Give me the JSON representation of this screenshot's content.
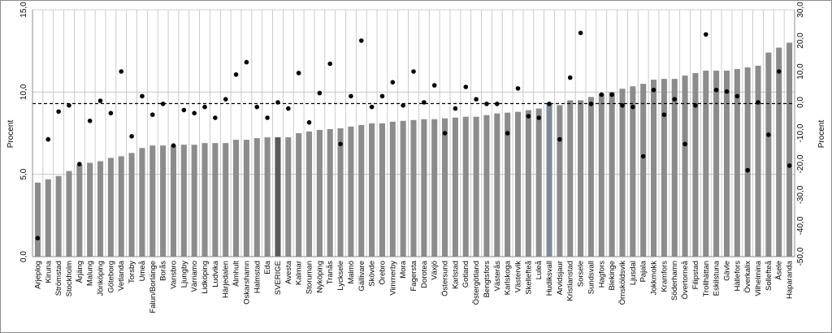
{
  "chart_data": {
    "type": "bar",
    "ylabel_left": "Procent",
    "ylabel_right": "Procent",
    "ylim_left": [
      0,
      15
    ],
    "ylim_right": [
      -50,
      30
    ],
    "left_ticks": [
      "0,0",
      "5,0",
      "10,0",
      "15,0"
    ],
    "right_ticks": [
      "-50,0",
      "-40,0",
      "-30,0",
      "-20,0",
      "-10,0",
      "0,0",
      "10,0",
      "20,0",
      "30,0"
    ],
    "grid": true,
    "reference_line_left": 9.3,
    "colors": {
      "bar": "#8c8c8c",
      "bar_highlight": "#5a5a5a",
      "bar_sverige": "#6e6e6e",
      "dot": "#000000",
      "grid": "#bfbfbf"
    },
    "categories": [
      "Arjeplog",
      "Kiruna",
      "Strömstad",
      "Stockholm",
      "Årjäng",
      "Malung",
      "Jönköping",
      "Göteborg",
      "Vetlanda",
      "Torsby",
      "Umeå",
      "Falun/Borlänge",
      "Borås",
      "Vansbro",
      "Ljungby",
      "Värnamo",
      "Lidköping",
      "Ludvika",
      "Härjedalen",
      "Älmhult",
      "Oskarshamn",
      "Halmstad",
      "Eda",
      "SVERIGE",
      "Avesta",
      "Kalmar",
      "Storuman",
      "Nyköping",
      "Tranås",
      "Lycksele",
      "Malmö",
      "Gällivare",
      "Skövde",
      "Örebro",
      "Vimmerby",
      "Mora",
      "Fagersta",
      "Dorotea",
      "Växjö",
      "Östersund",
      "Karlstad",
      "Gotland",
      "Östergötland",
      "Bengtsfors",
      "Västerås",
      "Karlskoga",
      "Västervik",
      "Skellefteå",
      "Luleå",
      "Hudiksvall",
      "Arvidsjaur",
      "Kristianstad",
      "Sorsele",
      "Sundsvall",
      "Hagfors",
      "Blekinge",
      "Örnsköldsvik",
      "Ljusdal",
      "Pajala",
      "Jokkmokk",
      "Kramfors",
      "Söderhamn",
      "Övertorneå",
      "Filipstad",
      "Trollhättan",
      "Eskilstuna",
      "Gävle",
      "Hällefors",
      "Överkalix",
      "Vilhelmina",
      "Sollefteå",
      "Åsele",
      "Haparanda"
    ],
    "series": [
      {
        "axis": "left",
        "kind": "bar",
        "values": [
          4.5,
          4.7,
          4.9,
          5.2,
          5.6,
          5.7,
          5.8,
          6.0,
          6.1,
          6.3,
          6.6,
          6.75,
          6.75,
          6.75,
          6.8,
          6.8,
          6.9,
          6.9,
          6.9,
          7.1,
          7.1,
          7.2,
          7.25,
          7.25,
          7.25,
          7.5,
          7.6,
          7.7,
          7.75,
          7.8,
          7.9,
          8.0,
          8.1,
          8.1,
          8.2,
          8.25,
          8.3,
          8.35,
          8.35,
          8.4,
          8.45,
          8.5,
          8.5,
          8.6,
          8.7,
          8.75,
          8.8,
          8.9,
          9.0,
          9.3,
          9.2,
          9.5,
          9.5,
          9.7,
          9.9,
          10.0,
          10.2,
          10.35,
          10.5,
          10.75,
          10.8,
          10.8,
          11.0,
          11.15,
          11.3,
          11.3,
          11.3,
          11.4,
          11.5,
          11.6,
          12.4,
          12.7,
          13.0
        ]
      },
      {
        "axis": "right",
        "kind": "dots",
        "values": [
          -44,
          -12,
          -3,
          -1,
          -20,
          -6,
          0.5,
          -3.5,
          10,
          -11,
          2,
          -4,
          -0.5,
          -14,
          -2.5,
          -3.5,
          -1.5,
          -5,
          1,
          9,
          13,
          -1.5,
          -5,
          0,
          -2,
          9.5,
          -6.5,
          3,
          12.5,
          -13.5,
          2,
          20,
          -1.5,
          2,
          6.5,
          -1,
          10,
          0,
          5.5,
          -10,
          -2,
          5,
          1,
          -0.5,
          -0.5,
          -10,
          4.5,
          -4.5,
          -5,
          -0.5,
          -12,
          8,
          22.5,
          -0.5,
          2.5,
          2.5,
          -1,
          -1.5,
          -17.5,
          4,
          -4,
          1,
          -13.5,
          -1,
          22,
          4,
          3.5,
          2,
          -22,
          0,
          -10.5,
          10,
          -20.5
        ]
      }
    ]
  }
}
